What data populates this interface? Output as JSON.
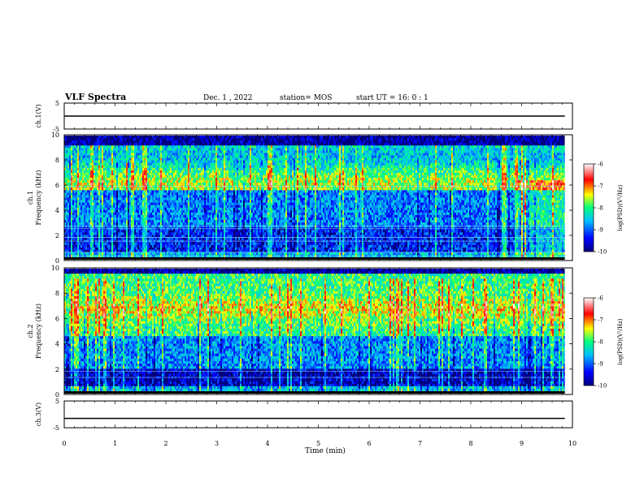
{
  "header": {
    "title": "VLF Spectra",
    "date": "Dec. 1 , 2022",
    "station": "station= MOS",
    "start_ut": "start  UT =   16: 0  : 1"
  },
  "colorbar": {
    "label": "log(PSD)(V²/Hz)",
    "ticks": [
      "-6",
      "-7",
      "-8",
      "-9",
      "-10"
    ]
  },
  "chart_data": [
    {
      "type": "line",
      "name": "ch1-voltage",
      "ylabel": "ch.1(V)",
      "ylim": [
        -5,
        5
      ],
      "y_ticks": [
        "5",
        "-5"
      ],
      "xlim": [
        0,
        10
      ],
      "series": [
        {
          "x": [
            0,
            9.85
          ],
          "y": [
            0,
            0
          ]
        }
      ]
    },
    {
      "type": "heatmap",
      "name": "ch1-spectrogram",
      "ylabel": "ch.1\nFrequency (kHz)",
      "ylim": [
        0,
        10
      ],
      "y_ticks": [
        "10",
        "8",
        "6",
        "4",
        "2",
        "0"
      ],
      "xlim": [
        0,
        10
      ],
      "value_label": "log(PSD)(V²/Hz)",
      "value_range": [
        -10,
        -6
      ],
      "colormap": [
        "#00007f",
        "#0000ff",
        "#00bfff",
        "#00ff7f",
        "#ffff00",
        "#ff0000",
        "#ffffff"
      ]
    },
    {
      "type": "heatmap",
      "name": "ch2-spectrogram",
      "ylabel": "ch.2\nFrequency (kHz)",
      "ylim": [
        0,
        10
      ],
      "y_ticks": [
        "10",
        "8",
        "6",
        "4",
        "2",
        "0"
      ],
      "xlim": [
        0,
        10
      ],
      "value_label": "log(PSD)(V²/Hz)",
      "value_range": [
        -10,
        -6
      ],
      "colormap": [
        "#00007f",
        "#0000ff",
        "#00bfff",
        "#00ff7f",
        "#ffff00",
        "#ff0000",
        "#ffffff"
      ]
    },
    {
      "type": "line",
      "name": "ch3-voltage",
      "ylabel": "ch.3(V)",
      "ylim": [
        -5,
        5
      ],
      "y_ticks": [
        "5",
        "-5"
      ],
      "xlim": [
        0,
        10
      ],
      "series": [
        {
          "x": [
            0,
            9.85
          ],
          "y": [
            -1.5,
            -1.5
          ]
        }
      ]
    }
  ],
  "x_axis": {
    "label": "Time  (min)",
    "ticks": [
      "0",
      "1",
      "2",
      "3",
      "4",
      "5",
      "6",
      "7",
      "8",
      "9",
      "10"
    ]
  }
}
